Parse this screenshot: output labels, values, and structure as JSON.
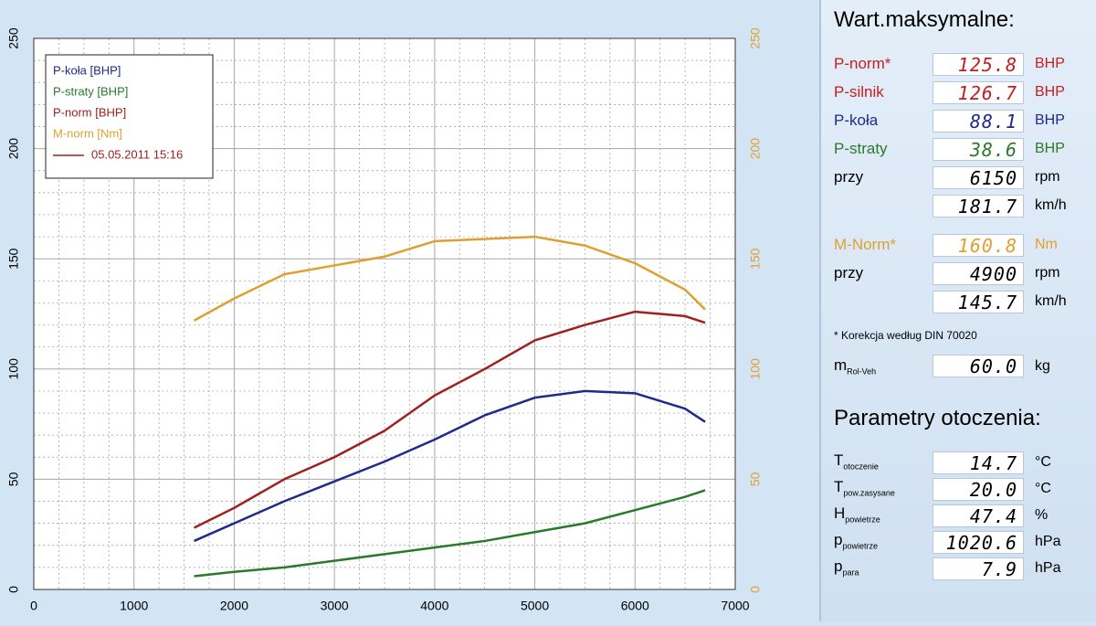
{
  "chart_data": {
    "type": "line",
    "x": [
      1600,
      2000,
      2500,
      3000,
      3500,
      4000,
      4500,
      5000,
      5500,
      6000,
      6500,
      6700
    ],
    "series": [
      {
        "name": "P-koła [BHP]",
        "color": "#1f2a8c",
        "values": [
          22,
          30,
          40,
          49,
          58,
          68,
          79,
          87,
          90,
          89,
          82,
          76
        ]
      },
      {
        "name": "P-straty [BHP]",
        "color": "#2a7a2a",
        "values": [
          6,
          8,
          10,
          13,
          16,
          19,
          22,
          26,
          30,
          36,
          42,
          45
        ]
      },
      {
        "name": "P-norm [BHP]",
        "color": "#a02020",
        "values": [
          28,
          37,
          50,
          60,
          72,
          88,
          100,
          113,
          120,
          126,
          124,
          121
        ]
      },
      {
        "name": "M-norm [Nm]",
        "color": "#e0a030",
        "values": [
          122,
          132,
          143,
          147,
          151,
          158,
          159,
          160,
          156,
          148,
          136,
          127
        ]
      }
    ],
    "run_label": "05.05.2011 15:16",
    "run_color": "#a02020",
    "xlim": [
      0,
      7000
    ],
    "xticks": [
      0,
      1000,
      2000,
      3000,
      4000,
      5000,
      6000,
      7000
    ],
    "ylim": [
      0,
      250
    ],
    "yticks": [
      0,
      50,
      100,
      150,
      200,
      250
    ],
    "y2lim": [
      0,
      250
    ],
    "y2ticks": [
      0,
      50,
      100,
      150,
      200,
      250
    ],
    "y2color": "#e0a030",
    "grid": true
  },
  "panel": {
    "max_title": "Wart.maksymalne:",
    "max_rows": [
      {
        "label": "P-norm*",
        "value": "125.8",
        "unit": "BHP",
        "color": "#c02020"
      },
      {
        "label": "P-silnik",
        "value": "126.7",
        "unit": "BHP",
        "color": "#c02020"
      },
      {
        "label": "P-koła",
        "value": "88.1",
        "unit": "BHP",
        "color": "#1f2a8c"
      },
      {
        "label": "P-straty",
        "value": "38.6",
        "unit": "BHP",
        "color": "#2a7a2a"
      },
      {
        "label": "przy",
        "value": "6150",
        "unit": "rpm"
      },
      {
        "value": "181.7",
        "unit": "km/h"
      },
      {
        "label": "M-Norm*",
        "value": "160.8",
        "unit": "Nm",
        "color": "#e0a030"
      },
      {
        "label": "przy",
        "value": "4900",
        "unit": "rpm"
      },
      {
        "value": "145.7",
        "unit": "km/h"
      }
    ],
    "note": "* Korekcja według DIN 70020",
    "mass": {
      "main": "m",
      "sub": "Rol-Veh",
      "value": "60.0",
      "unit": "kg"
    },
    "env_title": "Parametry otoczenia:",
    "env_rows": [
      {
        "main": "T",
        "sub": "otoczenie",
        "value": "14.7",
        "unit": "°C"
      },
      {
        "main": "T",
        "sub": "pow.zasysane",
        "value": "20.0",
        "unit": "°C"
      },
      {
        "main": "H",
        "sub": "powietrze",
        "value": "47.4",
        "unit": "%"
      },
      {
        "main": "p",
        "sub": "powietrze",
        "value": "1020.6",
        "unit": "hPa"
      },
      {
        "main": "p",
        "sub": "para",
        "value": "7.9",
        "unit": "hPa"
      }
    ]
  }
}
